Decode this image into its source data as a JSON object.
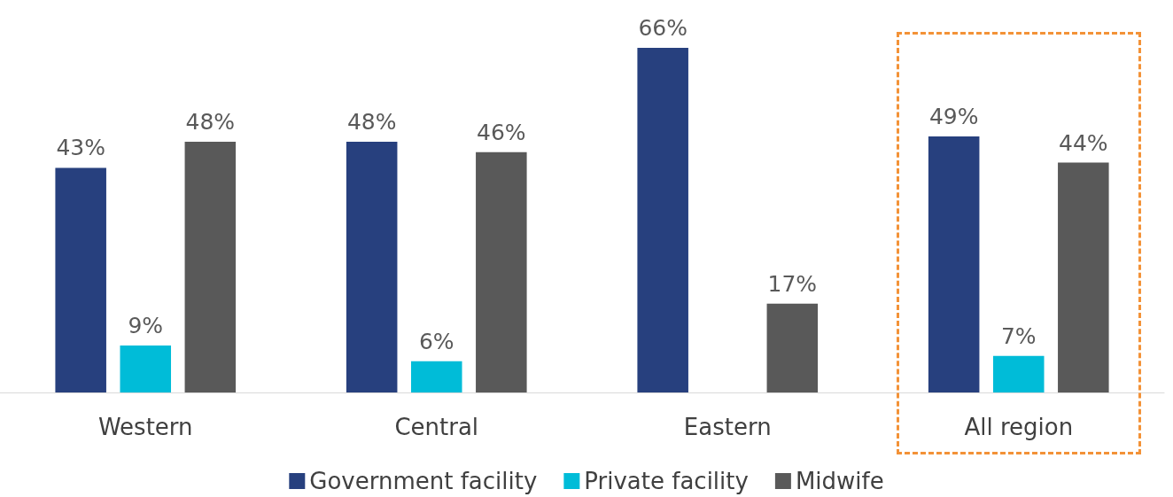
{
  "chart_data": {
    "type": "bar",
    "categories": [
      "Western",
      "Central",
      "Eastern",
      "All region"
    ],
    "series": [
      {
        "name": "Government facility",
        "color": "#27407e",
        "values": [
          43,
          48,
          66,
          49
        ],
        "value_labels": [
          "43%",
          "48%",
          "66%",
          "49%"
        ]
      },
      {
        "name": "Private facility",
        "color": "#00bcd8",
        "values": [
          9,
          6,
          null,
          7
        ],
        "value_labels": [
          "9%",
          "6%",
          null,
          "7%"
        ]
      },
      {
        "name": "Midwife",
        "color": "#595959",
        "values": [
          48,
          46,
          17,
          44
        ],
        "value_labels": [
          "48%",
          "46%",
          "17%",
          "44%"
        ]
      }
    ],
    "legend": "bottom"
  }
}
